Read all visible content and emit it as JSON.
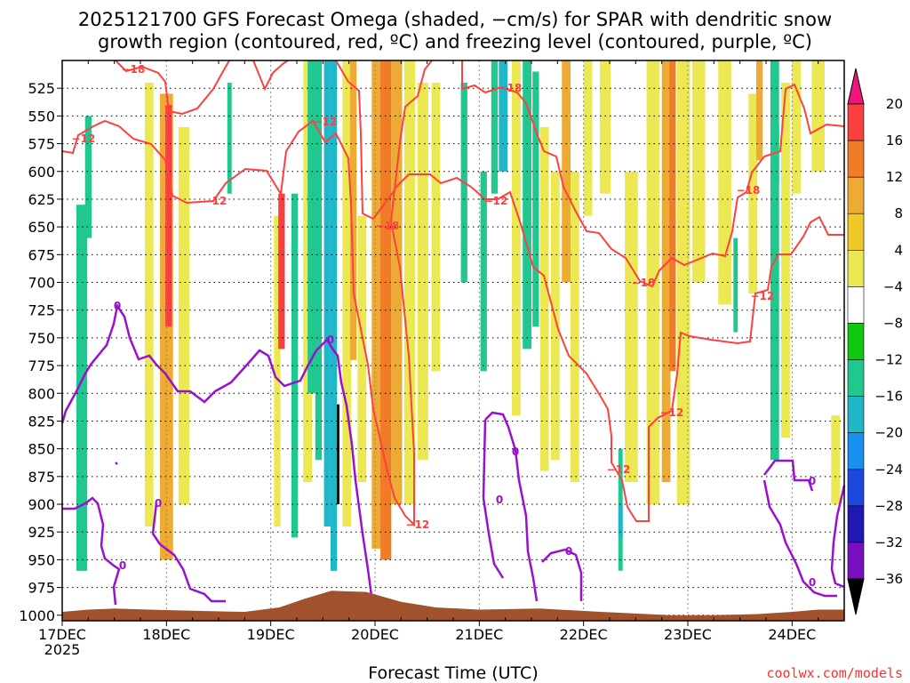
{
  "chart_data": {
    "type": "heatmap",
    "title_lines": [
      "2025121700 GFS Forecast Omega (shaded, −cm/s) for SPAR with dendritic snow",
      "growth region (contoured, red, ºC) and freezing level (contoured, purple, ºC)"
    ],
    "xlabel": "Forecast Time (UTC)",
    "ylabel": "",
    "credit": "coolwx.com/models",
    "x_ticks": [
      {
        "label": "17DEC",
        "sub": "2025",
        "hours": 0
      },
      {
        "label": "18DEC",
        "sub": "",
        "hours": 24
      },
      {
        "label": "19DEC",
        "sub": "",
        "hours": 48
      },
      {
        "label": "20DEC",
        "sub": "",
        "hours": 72
      },
      {
        "label": "21DEC",
        "sub": "",
        "hours": 96
      },
      {
        "label": "22DEC",
        "sub": "",
        "hours": 120
      },
      {
        "label": "23DEC",
        "sub": "",
        "hours": 144
      },
      {
        "label": "24DEC",
        "sub": "",
        "hours": 168
      }
    ],
    "xlim_hours": [
      0,
      180
    ],
    "y_ticks": [
      "525",
      "550",
      "575",
      "600",
      "625",
      "650",
      "675",
      "700",
      "725",
      "750",
      "775",
      "800",
      "825",
      "850",
      "875",
      "900",
      "925",
      "950",
      "975",
      "1000"
    ],
    "ylim_hpa": [
      1005,
      500
    ],
    "colorbar": {
      "labels": [
        "20",
        "16",
        "12",
        "8",
        "4",
        "−4",
        "−8",
        "−12",
        "−16",
        "−20",
        "−24",
        "−28",
        "−32",
        "−36"
      ],
      "colors": [
        "#f0147c",
        "#f84040",
        "#f07c28",
        "#eeab33",
        "#f0c828",
        "#ece854",
        "#ffffff",
        "#10c810",
        "#20c890",
        "#20b8c8",
        "#1890f0",
        "#1c48e0",
        "#2018b0",
        "#7810c0",
        "#a010c8",
        "#a0a0a0",
        "#000000"
      ]
    },
    "contour_labels": {
      "dgz": [
        "−18",
        "−12",
        "−12",
        "−12",
        "−18",
        "−18",
        "−12",
        "−12",
        "−18",
        "−12",
        "−12",
        "−18",
        "−12"
      ],
      "freezing": [
        "0",
        "0",
        "0",
        "0",
        "0",
        "0",
        "0",
        "0",
        "0"
      ]
    },
    "shaded_bands": [
      {
        "hours": 4.5,
        "w": 2.5,
        "top": 630,
        "bottom": 960,
        "value": -8
      },
      {
        "hours": 6,
        "w": 1.5,
        "top": 550,
        "bottom": 660,
        "value": -8
      },
      {
        "hours": 20,
        "w": 2,
        "top": 520,
        "bottom": 920,
        "value": 6
      },
      {
        "hours": 24,
        "w": 3,
        "top": 530,
        "bottom": 950,
        "value": 10
      },
      {
        "hours": 24.5,
        "w": 1.5,
        "top": 540,
        "bottom": 740,
        "value": 18
      },
      {
        "hours": 28,
        "w": 2.5,
        "top": 560,
        "bottom": 900,
        "value": 5
      },
      {
        "hours": 38.5,
        "w": 1,
        "top": 520,
        "bottom": 620,
        "value": -8
      },
      {
        "hours": 49.5,
        "w": 1.5,
        "top": 640,
        "bottom": 920,
        "value": 6
      },
      {
        "hours": 50.5,
        "w": 1.5,
        "top": 620,
        "bottom": 760,
        "value": 18
      },
      {
        "hours": 53.5,
        "w": 1.5,
        "top": 620,
        "bottom": 930,
        "value": -8
      },
      {
        "hours": 56.5,
        "w": 2,
        "top": 500,
        "bottom": 880,
        "value": 5
      },
      {
        "hours": 57.5,
        "w": 2,
        "top": 500,
        "bottom": 800,
        "value": -10
      },
      {
        "hours": 59,
        "w": 1.5,
        "top": 500,
        "bottom": 860,
        "value": -8
      },
      {
        "hours": 61,
        "w": 1.5,
        "top": 500,
        "bottom": 920,
        "value": -12
      },
      {
        "hours": 62.5,
        "w": 1.5,
        "top": 500,
        "bottom": 960,
        "value": -14
      },
      {
        "hours": 63.5,
        "w": 0.6,
        "top": 810,
        "bottom": 900,
        "value": -40
      },
      {
        "hours": 65.5,
        "w": 2,
        "top": 500,
        "bottom": 920,
        "value": 6
      },
      {
        "hours": 67,
        "w": 1.5,
        "top": 500,
        "bottom": 770,
        "value": 10
      },
      {
        "hours": 69,
        "w": 2,
        "top": 640,
        "bottom": 880,
        "value": 5
      },
      {
        "hours": 72.5,
        "w": 2.5,
        "top": 500,
        "bottom": 940,
        "value": 10
      },
      {
        "hours": 74.5,
        "w": 2.5,
        "top": 500,
        "bottom": 950,
        "value": 14
      },
      {
        "hours": 77,
        "w": 2.5,
        "top": 500,
        "bottom": 900,
        "value": 10
      },
      {
        "hours": 80,
        "w": 2.5,
        "top": 500,
        "bottom": 900,
        "value": 5
      },
      {
        "hours": 83,
        "w": 2.5,
        "top": 520,
        "bottom": 860,
        "value": 5
      },
      {
        "hours": 86,
        "w": 2,
        "top": 520,
        "bottom": 780,
        "value": 5
      },
      {
        "hours": 92.5,
        "w": 1.5,
        "top": 520,
        "bottom": 700,
        "value": -8
      },
      {
        "hours": 97,
        "w": 1.5,
        "top": 600,
        "bottom": 780,
        "value": -8
      },
      {
        "hours": 99.5,
        "w": 1.5,
        "top": 500,
        "bottom": 620,
        "value": -8
      },
      {
        "hours": 101.5,
        "w": 2,
        "top": 500,
        "bottom": 600,
        "value": -12
      },
      {
        "hours": 104.5,
        "w": 2,
        "top": 500,
        "bottom": 820,
        "value": 5
      },
      {
        "hours": 107,
        "w": 2,
        "top": 500,
        "bottom": 760,
        "value": -8
      },
      {
        "hours": 109,
        "w": 1.5,
        "top": 510,
        "bottom": 740,
        "value": -10
      },
      {
        "hours": 111,
        "w": 2,
        "top": 560,
        "bottom": 870,
        "value": 5
      },
      {
        "hours": 113.5,
        "w": 2,
        "top": 600,
        "bottom": 860,
        "value": 5
      },
      {
        "hours": 116,
        "w": 2,
        "top": 500,
        "bottom": 700,
        "value": 10
      },
      {
        "hours": 118,
        "w": 2,
        "top": 600,
        "bottom": 880,
        "value": 6
      },
      {
        "hours": 121,
        "w": 2,
        "top": 500,
        "bottom": 640,
        "value": 6
      },
      {
        "hours": 125,
        "w": 2.5,
        "top": 500,
        "bottom": 620,
        "value": 6
      },
      {
        "hours": 128.5,
        "w": 1,
        "top": 850,
        "bottom": 960,
        "value": -8
      },
      {
        "hours": 128.5,
        "w": 1,
        "top": 900,
        "bottom": 930,
        "value": -12
      },
      {
        "hours": 131,
        "w": 3,
        "top": 600,
        "bottom": 880,
        "value": 5
      },
      {
        "hours": 136,
        "w": 3,
        "top": 500,
        "bottom": 900,
        "value": 6
      },
      {
        "hours": 139,
        "w": 2,
        "top": 500,
        "bottom": 880,
        "value": 10
      },
      {
        "hours": 140.5,
        "w": 1.5,
        "top": 500,
        "bottom": 780,
        "value": 14
      },
      {
        "hours": 143,
        "w": 3,
        "top": 500,
        "bottom": 900,
        "value": 6
      },
      {
        "hours": 146.5,
        "w": 3,
        "top": 500,
        "bottom": 700,
        "value": 6
      },
      {
        "hours": 152.5,
        "w": 3,
        "top": 500,
        "bottom": 720,
        "value": 6
      },
      {
        "hours": 155,
        "w": 1,
        "top": 660,
        "bottom": 745,
        "value": -8
      },
      {
        "hours": 159,
        "w": 2,
        "top": 530,
        "bottom": 710,
        "value": 6
      },
      {
        "hours": 160.5,
        "w": 1.5,
        "top": 500,
        "bottom": 590,
        "value": 10
      },
      {
        "hours": 164,
        "w": 2,
        "top": 500,
        "bottom": 860,
        "value": -8
      },
      {
        "hours": 164.5,
        "w": 1,
        "top": 560,
        "bottom": 610,
        "value": -10
      },
      {
        "hours": 166.5,
        "w": 2,
        "top": 520,
        "bottom": 840,
        "value": 5
      },
      {
        "hours": 169,
        "w": 2,
        "top": 500,
        "bottom": 620,
        "value": 6
      },
      {
        "hours": 174,
        "w": 3,
        "top": 500,
        "bottom": 600,
        "value": 5
      },
      {
        "hours": 178,
        "w": 2,
        "top": 820,
        "bottom": 900,
        "value": 5
      }
    ],
    "terrain_surface": [
      {
        "hours": 0,
        "p": 997
      },
      {
        "hours": 6,
        "p": 995
      },
      {
        "hours": 12,
        "p": 994
      },
      {
        "hours": 20,
        "p": 995
      },
      {
        "hours": 30,
        "p": 996
      },
      {
        "hours": 42,
        "p": 997
      },
      {
        "hours": 50,
        "p": 993
      },
      {
        "hours": 56,
        "p": 985
      },
      {
        "hours": 62,
        "p": 978
      },
      {
        "hours": 70,
        "p": 979
      },
      {
        "hours": 78,
        "p": 988
      },
      {
        "hours": 86,
        "p": 993
      },
      {
        "hours": 96,
        "p": 995
      },
      {
        "hours": 110,
        "p": 994
      },
      {
        "hours": 124,
        "p": 997
      },
      {
        "hours": 140,
        "p": 1000
      },
      {
        "hours": 150,
        "p": 1000
      },
      {
        "hours": 160,
        "p": 999
      },
      {
        "hours": 168,
        "p": 997
      },
      {
        "hours": 174,
        "p": 995
      },
      {
        "hours": 180,
        "p": 995
      }
    ]
  }
}
